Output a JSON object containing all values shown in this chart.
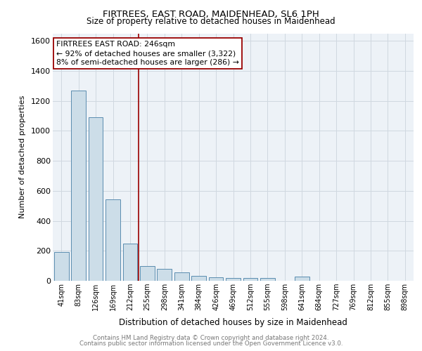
{
  "title1": "FIRTREES, EAST ROAD, MAIDENHEAD, SL6 1PH",
  "title2": "Size of property relative to detached houses in Maidenhead",
  "xlabel": "Distribution of detached houses by size in Maidenhead",
  "ylabel": "Number of detached properties",
  "categories": [
    "41sqm",
    "83sqm",
    "126sqm",
    "169sqm",
    "212sqm",
    "255sqm",
    "298sqm",
    "341sqm",
    "384sqm",
    "426sqm",
    "469sqm",
    "512sqm",
    "555sqm",
    "598sqm",
    "641sqm",
    "684sqm",
    "727sqm",
    "769sqm",
    "812sqm",
    "855sqm",
    "898sqm"
  ],
  "values": [
    192,
    1268,
    1090,
    545,
    248,
    100,
    78,
    57,
    32,
    22,
    20,
    18,
    18,
    0,
    28,
    0,
    0,
    0,
    0,
    0,
    0
  ],
  "bar_color": "#ccdde8",
  "bar_edge_color": "#5a8db0",
  "vline_color": "#990000",
  "annotation_text1": "FIRTREES EAST ROAD: 246sqm",
  "annotation_text2": "← 92% of detached houses are smaller (3,322)",
  "annotation_text3": "8% of semi-detached houses are larger (286) →",
  "ylim": [
    0,
    1650
  ],
  "yticks": [
    0,
    200,
    400,
    600,
    800,
    1000,
    1200,
    1400,
    1600
  ],
  "footer1": "Contains HM Land Registry data © Crown copyright and database right 2024.",
  "footer2": "Contains public sector information licensed under the Open Government Licence v3.0.",
  "bg_color": "#edf2f7"
}
